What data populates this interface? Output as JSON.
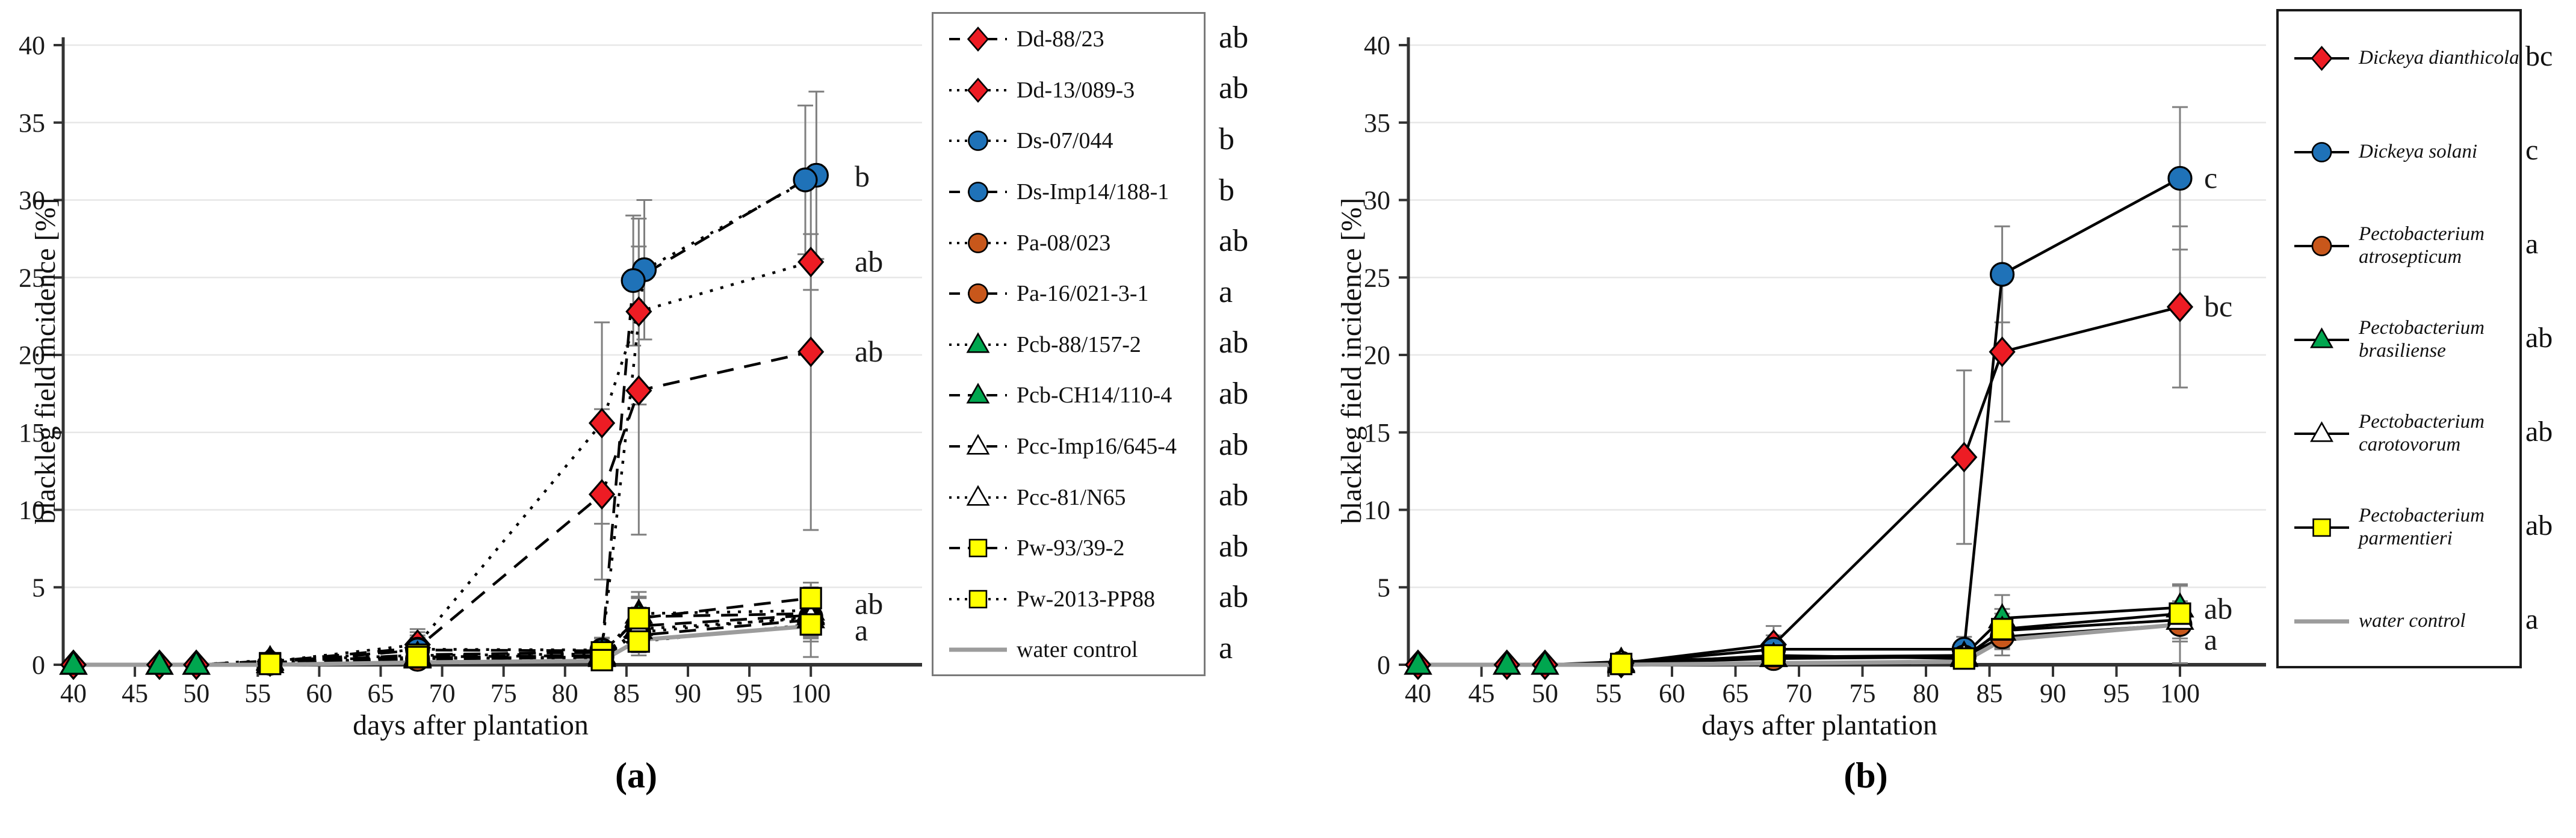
{
  "panel_a": {
    "ylabel": "blackleg field incidence [%]",
    "xlabel": "days after plantation",
    "caption": "(a)"
  },
  "panel_b": {
    "ylabel": "blackleg field incidence [%]",
    "xlabel": "days after plantation",
    "caption": "(b)"
  },
  "axes": {
    "y_ticks": [
      0,
      5,
      10,
      15,
      20,
      25,
      30,
      35,
      40
    ],
    "x_ticks": [
      40,
      45,
      50,
      55,
      60,
      65,
      70,
      75,
      80,
      85,
      90,
      95,
      100
    ]
  },
  "colors": {
    "red": "#ED1C24",
    "blue": "#1F72B8",
    "orange": "#C8571B",
    "green": "#00A64F",
    "yellow": "#FFFF00",
    "open": "#FFFFFF",
    "water_gray": "#9C9C9C",
    "error_bar": "#7F7F7F",
    "grid": "#E7E7E7",
    "axis": "#333333"
  },
  "chart_data": [
    {
      "type": "line",
      "panel": "a",
      "title": "",
      "xlabel": "days after plantation",
      "ylabel": "blackleg field incidence [%]",
      "xlim": [
        40,
        103
      ],
      "ylim": [
        0,
        40
      ],
      "grid": "horizontal",
      "legend_position": "right-outside",
      "x_days": [
        40,
        47,
        50,
        56,
        68,
        83,
        86,
        100
      ],
      "series": [
        {
          "name": "Dd-88/23",
          "letter": "ab",
          "marker": "diamond",
          "fill": "red",
          "line": "dashed",
          "y": [
            0,
            0,
            0,
            0.2,
            1.1,
            11.0,
            17.7,
            20.2
          ],
          "err": [
            0,
            0,
            0,
            0.3,
            1.0,
            5.5,
            9.3,
            11.5
          ]
        },
        {
          "name": "Dd-13/089-3",
          "letter": "ab",
          "marker": "diamond",
          "fill": "red",
          "line": "dotted",
          "y": [
            null,
            null,
            null,
            0.2,
            1.3,
            15.6,
            22.8,
            26.0
          ],
          "err": [
            0,
            0,
            0,
            0.3,
            1.0,
            6.5,
            6.0,
            1.8
          ]
        },
        {
          "name": "Ds-07/044",
          "letter": "b",
          "marker": "circle",
          "fill": "blue",
          "line": "dotted",
          "y": [
            null,
            null,
            null,
            0.1,
            1.0,
            0.95,
            25.5,
            31.6
          ],
          "err": [
            0,
            0,
            0,
            0,
            0.9,
            0.8,
            4.5,
            5.4
          ],
          "x_jitter": [
            0,
            0,
            0,
            0,
            0,
            0,
            0.45,
            0.45
          ]
        },
        {
          "name": "Ds-Imp14/188-1",
          "letter": "b",
          "marker": "circle",
          "fill": "blue",
          "line": "dashed",
          "y": [
            null,
            null,
            null,
            0.1,
            0.95,
            0.9,
            24.8,
            31.3
          ],
          "err": [
            0,
            0,
            0,
            0,
            0.8,
            0.8,
            4.2,
            4.8
          ],
          "x_jitter": [
            0,
            0,
            0,
            0,
            0,
            0,
            -0.45,
            -0.45
          ]
        },
        {
          "name": "Pa-08/023",
          "letter": "ab",
          "marker": "circle",
          "fill": "orange",
          "line": "dotted",
          "y": [
            null,
            null,
            null,
            0.1,
            0.4,
            0.5,
            2.1,
            3.1
          ],
          "err": [
            0,
            0,
            0,
            0.2,
            0.5,
            0.4,
            1.2,
            1.4
          ]
        },
        {
          "name": "Pa-16/021-3-1",
          "letter": "a",
          "marker": "circle",
          "fill": "orange",
          "line": "dashed",
          "y": [
            null,
            null,
            null,
            0.1,
            0.35,
            0.5,
            1.9,
            2.9
          ],
          "err": [
            0,
            0,
            0,
            0.2,
            0.4,
            0.4,
            1.1,
            2.4
          ]
        },
        {
          "name": "Pcb-88/157-2",
          "letter": "ab",
          "marker": "triangle",
          "fill": "green",
          "line": "dotted",
          "y": [
            0,
            0,
            0,
            0.3,
            0.6,
            0.7,
            3.3,
            3.5
          ],
          "err": [
            0,
            0,
            0,
            0.4,
            0.7,
            0.5,
            1.4,
            1.5
          ]
        },
        {
          "name": "Pcb-CH14/110-4",
          "letter": "ab",
          "marker": "triangle",
          "fill": "green",
          "line": "dashed",
          "y": [
            0,
            0,
            0,
            0.25,
            0.5,
            0.6,
            3.1,
            3.3
          ],
          "err": [
            0,
            0,
            0,
            0.3,
            0.6,
            0.5,
            1.3,
            1.4
          ]
        },
        {
          "name": "Pcc-Imp16/645-4",
          "letter": "ab",
          "marker": "triangle",
          "fill": "open",
          "line": "dashed",
          "y": [
            null,
            null,
            null,
            0.1,
            0.45,
            0.6,
            2.5,
            3.2
          ],
          "err": [
            0,
            0,
            0,
            0.2,
            0.5,
            0.4,
            1.2,
            1.3
          ]
        },
        {
          "name": "Pcc-81/N65",
          "letter": "ab",
          "marker": "triangle",
          "fill": "open",
          "line": "dotted",
          "y": [
            null,
            null,
            null,
            0.1,
            0.4,
            0.5,
            2.3,
            3.0
          ],
          "err": [
            0,
            0,
            0,
            0.2,
            0.4,
            0.4,
            1.1,
            1.2
          ]
        },
        {
          "name": "Pw-93/39-2",
          "letter": "ab",
          "marker": "square",
          "fill": "yellow",
          "line": "dashed",
          "y": [
            null,
            null,
            null,
            0.1,
            0.65,
            0.8,
            3.0,
            4.3
          ],
          "err": [
            0,
            0,
            0,
            0.3,
            0.6,
            0.5,
            1.3,
            1.0
          ]
        },
        {
          "name": "Pw-2013-PP88",
          "letter": "ab",
          "marker": "square",
          "fill": "yellow",
          "line": "dotted",
          "y": [
            null,
            null,
            null,
            0.05,
            0.5,
            0.3,
            1.5,
            2.6
          ],
          "err": [
            0,
            0,
            0,
            0.2,
            0.5,
            0.3,
            0.9,
            1.1
          ]
        },
        {
          "name": "water control",
          "letter": "a",
          "marker": null,
          "fill": null,
          "line": "solid",
          "line_color": "water_gray",
          "y": [
            0,
            0,
            0,
            0,
            0.15,
            0.25,
            1.6,
            2.5
          ],
          "err": [
            0,
            0,
            0,
            0,
            0,
            0,
            0,
            0
          ]
        }
      ],
      "annotations": [
        {
          "text": "b",
          "value": 31.5
        },
        {
          "text": "ab",
          "value": 26.0
        },
        {
          "text": "ab",
          "value": 20.2
        },
        {
          "text": "ab",
          "value": 3.9
        },
        {
          "text": "a",
          "value": 2.2
        }
      ]
    },
    {
      "type": "line",
      "panel": "b",
      "title": "",
      "xlabel": "days after plantation",
      "ylabel": "blackleg field incidence [%]",
      "xlim": [
        40,
        103
      ],
      "ylim": [
        0,
        40
      ],
      "grid": "horizontal",
      "legend_position": "right-outside",
      "x_days": [
        40,
        47,
        50,
        56,
        68,
        83,
        86,
        100
      ],
      "series": [
        {
          "name": "Dickeya dianthicola",
          "letter": "bc",
          "marker": "diamond",
          "fill": "red",
          "line": "solid",
          "italic": true,
          "y": [
            0,
            0,
            0,
            0.1,
            1.3,
            13.4,
            20.2,
            23.1
          ],
          "err": [
            0,
            0,
            0,
            0.2,
            1.2,
            5.6,
            4.5,
            5.2
          ]
        },
        {
          "name": "Dickeya solani",
          "letter": "c",
          "marker": "circle",
          "fill": "blue",
          "line": "solid",
          "italic": true,
          "y": [
            null,
            null,
            null,
            0.1,
            1.0,
            1.0,
            25.2,
            31.4
          ],
          "err": [
            0,
            0,
            0,
            0,
            0.9,
            0.8,
            3.1,
            4.6
          ]
        },
        {
          "name": "Pectobacterium atrosepticum",
          "letter": "a",
          "marker": "circle",
          "fill": "orange",
          "line": "solid",
          "italic": true,
          "y": [
            null,
            null,
            null,
            0.1,
            0.4,
            0.5,
            1.8,
            2.6
          ],
          "err": [
            0,
            0,
            0,
            0.2,
            0.5,
            0.4,
            1.2,
            2.5
          ]
        },
        {
          "name": "Pectobacterium brasiliense",
          "letter": "ab",
          "marker": "triangle",
          "fill": "green",
          "line": "solid",
          "italic": true,
          "y": [
            0,
            0,
            0,
            0.2,
            0.5,
            0.6,
            3.0,
            3.7
          ],
          "err": [
            0,
            0,
            0,
            0.35,
            0.7,
            0.5,
            1.5,
            1.5
          ]
        },
        {
          "name": "Pectobacterium carotovorum",
          "letter": "ab",
          "marker": "triangle",
          "fill": "open",
          "line": "solid",
          "italic": true,
          "y": [
            null,
            null,
            null,
            0.1,
            0.5,
            0.5,
            2.2,
            2.9
          ],
          "err": [
            0,
            0,
            0,
            0.2,
            0.5,
            0.4,
            1.1,
            1.2
          ]
        },
        {
          "name": "Pectobacterium parmentieri",
          "letter": "ab",
          "marker": "square",
          "fill": "yellow",
          "line": "solid",
          "italic": true,
          "y": [
            null,
            null,
            null,
            0.05,
            0.6,
            0.4,
            2.3,
            3.3
          ],
          "err": [
            0,
            0,
            0,
            0.2,
            0.6,
            0.3,
            1.3,
            1.8
          ]
        },
        {
          "name": "water control",
          "letter": "a",
          "marker": null,
          "fill": null,
          "line": "solid",
          "line_color": "water_gray",
          "italic": true,
          "y": [
            0,
            0,
            0,
            0,
            0.1,
            0.2,
            1.6,
            2.6
          ],
          "err": [
            0,
            0,
            0,
            0,
            0,
            0,
            0,
            0
          ]
        }
      ],
      "annotations": [
        {
          "text": "c",
          "value": 31.4
        },
        {
          "text": "bc",
          "value": 23.1
        },
        {
          "text": "ab",
          "value": 3.6
        },
        {
          "text": "a",
          "value": 1.6
        }
      ]
    }
  ]
}
